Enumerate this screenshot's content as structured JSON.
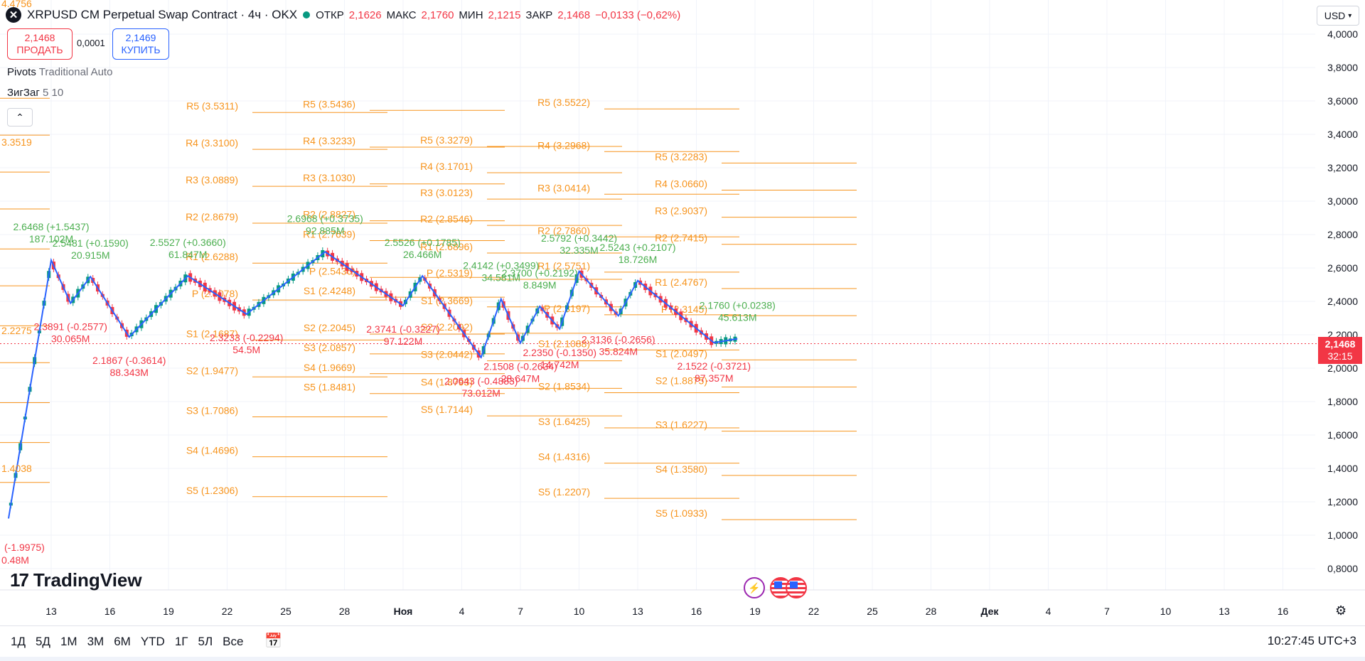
{
  "header": {
    "title": "XRPUSD CM Perpetual Swap Contract · 4ч · OKX",
    "open_label": "ОТКР",
    "open": "2,1626",
    "high_label": "МАКС",
    "high": "2,1760",
    "low_label": "МИН",
    "low": "2,1215",
    "close_label": "ЗАКР",
    "close": "2,1468",
    "change": "−0,0133 (−0,62%)"
  },
  "trade": {
    "sell_price": "2,1468",
    "sell_label": "ПРОДАТЬ",
    "spread": "0,0001",
    "buy_price": "2,1469",
    "buy_label": "КУПИТЬ"
  },
  "indicators": {
    "pivots_name": "Pivots",
    "pivots_params": "Traditional Auto",
    "zigzag_name": "ЗигЗаг",
    "zigzag_params": "5 10"
  },
  "currency": "USD",
  "current_price": {
    "value": "2,1468",
    "countdown": "32:15",
    "color": "#f23645"
  },
  "logo_text": "TradingView",
  "bottom_bar": {
    "periods": [
      "1Д",
      "5Д",
      "1М",
      "3М",
      "6М",
      "YTD",
      "1Г",
      "5Л",
      "Все"
    ],
    "clock": "10:27:45 UTC+3"
  },
  "icons": {
    "close": "x-icon",
    "calendar": "calendar-icon",
    "settings": "gear-icon",
    "event": "lightning-icon",
    "flag": "us-flag-icon"
  },
  "colors": {
    "pivot": "#f7941d",
    "zigzag": "#2962ff",
    "up": "#089981",
    "down": "#f23645",
    "label_up": "#4caf50",
    "label_down": "#f23645"
  },
  "chart_data": {
    "type": "candlestick",
    "y_axis": {
      "min": 0.8,
      "max": 4.0,
      "ticks": [
        "4,0000",
        "3,8000",
        "3,6000",
        "3,4000",
        "3,2000",
        "3,0000",
        "2,8000",
        "2,6000",
        "2,4000",
        "2,2000",
        "2,0000",
        "1,8000",
        "1,6000",
        "1,4000",
        "1,2000",
        "1,0000",
        "0,8000"
      ]
    },
    "x_axis": {
      "ticks": [
        "13",
        "16",
        "19",
        "22",
        "25",
        "28",
        "Ноя",
        "4",
        "7",
        "10",
        "13",
        "16",
        "19",
        "22",
        "25",
        "28",
        "Дек",
        "4",
        "7",
        "10",
        "13",
        "16"
      ]
    },
    "pivot_periods": [
      {
        "x_start": "13",
        "x_end": "19",
        "levels": [
          {
            "name": "R5",
            "value": 3.5311,
            "label": "R5 (3.5311)"
          },
          {
            "name": "R4",
            "value": 3.31,
            "label": "R4 (3.3100)"
          },
          {
            "name": "R3",
            "value": 3.0889,
            "label": "R3 (3.0889)"
          },
          {
            "name": "R2",
            "value": 2.8679,
            "label": "R2 (2.8679)"
          },
          {
            "name": "R1",
            "value": 2.6288,
            "label": "R1 (2.6288)"
          },
          {
            "name": "P",
            "value": 2.4078,
            "label": "P (2.4078)"
          },
          {
            "name": "S1",
            "value": 2.1687,
            "label": "S1 (2.1687)"
          },
          {
            "name": "S2",
            "value": 1.9477,
            "label": "S2 (1.9477)"
          },
          {
            "name": "S3",
            "value": 1.7086,
            "label": "S3 (1.7086)"
          },
          {
            "name": "S4",
            "value": 1.4696,
            "label": "S4 (1.4696)"
          },
          {
            "name": "S5",
            "value": 1.2306,
            "label": "S5 (1.2306)"
          }
        ]
      },
      {
        "x_start": "19",
        "x_end": "Ноя",
        "levels": [
          {
            "name": "R5",
            "value": 3.5436,
            "label": "R5 (3.5436)"
          },
          {
            "name": "R4",
            "value": 3.3233,
            "label": "R4 (3.3233)"
          },
          {
            "name": "R3",
            "value": 3.103,
            "label": "R3 (3.1030)"
          },
          {
            "name": "R2",
            "value": 2.8827,
            "label": "R2 (2.8827)"
          },
          {
            "name": "R1",
            "value": 2.7639,
            "label": "R1 (2.7639)"
          },
          {
            "name": "P",
            "value": 2.5436,
            "label": "P (2.5436)"
          },
          {
            "name": "S1",
            "value": 2.4248,
            "label": "S1 (2.4248)"
          },
          {
            "name": "S2",
            "value": 2.2045,
            "label": "S2 (2.2045)"
          },
          {
            "name": "S3",
            "value": 2.0857,
            "label": "S3 (2.0857)"
          },
          {
            "name": "S4",
            "value": 1.9669,
            "label": "S4 (1.9669)"
          },
          {
            "name": "S5",
            "value": 1.8481,
            "label": "S5 (1.8481)"
          }
        ]
      },
      {
        "x_start": "Ноя",
        "x_end": "7",
        "levels": [
          {
            "name": "R5",
            "value": 3.3279,
            "label": "R5 (3.3279)"
          },
          {
            "name": "R4",
            "value": 3.1701,
            "label": "R4 (3.1701)"
          },
          {
            "name": "R3",
            "value": 3.0123,
            "label": "R3 (3.0123)"
          },
          {
            "name": "R2",
            "value": 2.8546,
            "label": "R2 (2.8546)"
          },
          {
            "name": "R1",
            "value": 2.6896,
            "label": "R1 (2.6896)"
          },
          {
            "name": "P",
            "value": 2.5319,
            "label": "P (2.5319)"
          },
          {
            "name": "S1",
            "value": 2.3669,
            "label": "S1 (2.3669)"
          },
          {
            "name": "S2",
            "value": 2.2092,
            "label": "S2 (2.2092)"
          },
          {
            "name": "S3",
            "value": 2.0442,
            "label": "S3 (2.0442)"
          },
          {
            "name": "S4",
            "value": 1.8793,
            "label": "S4 (1.8793)"
          },
          {
            "name": "S5",
            "value": 1.7144,
            "label": "S5 (1.7144)"
          }
        ]
      },
      {
        "x_start": "7",
        "x_end": "16",
        "levels": [
          {
            "name": "R5",
            "value": 3.5522,
            "label": "R5 (3.5522)"
          },
          {
            "name": "R4",
            "value": 3.2968,
            "label": "R4 (3.2968)"
          },
          {
            "name": "R3",
            "value": 3.0414,
            "label": "R3 (3.0414)"
          },
          {
            "name": "R2",
            "value": 2.786,
            "label": "R2 (2.7860)"
          },
          {
            "name": "R1",
            "value": 2.5751,
            "label": "R1 (2.5751)"
          },
          {
            "name": "P",
            "value": 2.3197,
            "label": "P (2.3197)"
          },
          {
            "name": "S1",
            "value": 2.1088,
            "label": "S1 (2.1088)"
          },
          {
            "name": "S2",
            "value": 1.8534,
            "label": "S2 (1.8534)"
          },
          {
            "name": "S3",
            "value": 1.6425,
            "label": "S3 (1.6425)"
          },
          {
            "name": "S4",
            "value": 1.4316,
            "label": "S4 (1.4316)"
          },
          {
            "name": "S5",
            "value": 1.2207,
            "label": "S5 (1.2207)"
          }
        ]
      },
      {
        "x_start": "16",
        "x_end": "22",
        "levels": [
          {
            "name": "R5",
            "value": 3.2283,
            "label": "R5 (3.2283)"
          },
          {
            "name": "R4",
            "value": 3.066,
            "label": "R4 (3.0660)"
          },
          {
            "name": "R3",
            "value": 2.9037,
            "label": "R3 (2.9037)"
          },
          {
            "name": "R2",
            "value": 2.7415,
            "label": "R2 (2.7415)"
          },
          {
            "name": "R1",
            "value": 2.4767,
            "label": "R1 (2.4767)"
          },
          {
            "name": "P",
            "value": 2.3145,
            "label": "P (2.3145)"
          },
          {
            "name": "S1",
            "value": 2.0497,
            "label": "S1 (2.0497)"
          },
          {
            "name": "S2",
            "value": 1.8875,
            "label": "S2 (1.8875)"
          },
          {
            "name": "S3",
            "value": 1.6227,
            "label": "S3 (1.6227)"
          },
          {
            "name": "S4",
            "value": 1.358,
            "label": "S4 (1.3580)"
          },
          {
            "name": "S5",
            "value": 1.0933,
            "label": "S5 (1.0933)"
          }
        ]
      }
    ],
    "left_edge_labels": [
      "4.4756",
      "3.3519",
      "2.2275",
      "1.4038",
      "(-1.9975)",
      "0.48M"
    ],
    "zigzag": [
      {
        "x": "13",
        "y": 2.6468,
        "label": "2.6468 (+1.5437)",
        "vol": "187.102M",
        "dir": "up"
      },
      {
        "x": "14",
        "y": 2.3891,
        "label": "2.3891 (-0.2577)",
        "vol": "30.065M",
        "dir": "down"
      },
      {
        "x": "15",
        "y": 2.5481,
        "label": "2.5481 (+0.1590)",
        "vol": "20.915M",
        "dir": "up"
      },
      {
        "x": "17",
        "y": 2.1867,
        "label": "2.1867 (-0.3614)",
        "vol": "88.343M",
        "dir": "down"
      },
      {
        "x": "20",
        "y": 2.5527,
        "label": "2.5527 (+0.3660)",
        "vol": "61.847M",
        "dir": "up"
      },
      {
        "x": "23",
        "y": 2.3233,
        "label": "2.3233 (-0.2294)",
        "vol": "54.5M",
        "dir": "down"
      },
      {
        "x": "27",
        "y": 2.6968,
        "label": "2.6968 (+0.3735)",
        "vol": "92.885M",
        "dir": "up"
      },
      {
        "x": "Ноя",
        "y": 2.3741,
        "label": "2.3741 (-0.3227)",
        "vol": "97.122M",
        "dir": "down"
      },
      {
        "x": "2",
        "y": 2.5526,
        "label": "2.5526 (+0.1785)",
        "vol": "26.466M",
        "dir": "up"
      },
      {
        "x": "5",
        "y": 2.0643,
        "label": "2.0643 (-0.4883)",
        "vol": "73.012M",
        "dir": "down"
      },
      {
        "x": "6",
        "y": 2.4142,
        "label": "2.4142 (+0.3499)",
        "vol": "34.581M",
        "dir": "up"
      },
      {
        "x": "7",
        "y": 2.1508,
        "label": "2.1508 (-0.2634)",
        "vol": "28.647M",
        "dir": "down"
      },
      {
        "x": "8",
        "y": 2.37,
        "label": "2.3700 (+0.2192)",
        "vol": "8.849M",
        "dir": "up"
      },
      {
        "x": "9",
        "y": 2.235,
        "label": "2.2350 (-0.1350)",
        "vol": "14.742M",
        "dir": "down"
      },
      {
        "x": "10",
        "y": 2.5792,
        "label": "2.5792 (+0.3442)",
        "vol": "32.335M",
        "dir": "up"
      },
      {
        "x": "12",
        "y": 2.3136,
        "label": "2.3136 (-0.2656)",
        "vol": "35.824M",
        "dir": "down"
      },
      {
        "x": "13",
        "y": 2.5243,
        "label": "2.5243 (+0.2107)",
        "vol": "18.726M",
        "dir": "up"
      },
      {
        "x": "17",
        "y": 2.1522,
        "label": "2.1522 (-0.3721)",
        "vol": "87.357M",
        "dir": "down"
      },
      {
        "x": "18",
        "y": 2.176,
        "label": "2.1760 (+0.0238)",
        "vol": "45.613M",
        "dir": "up"
      }
    ]
  }
}
